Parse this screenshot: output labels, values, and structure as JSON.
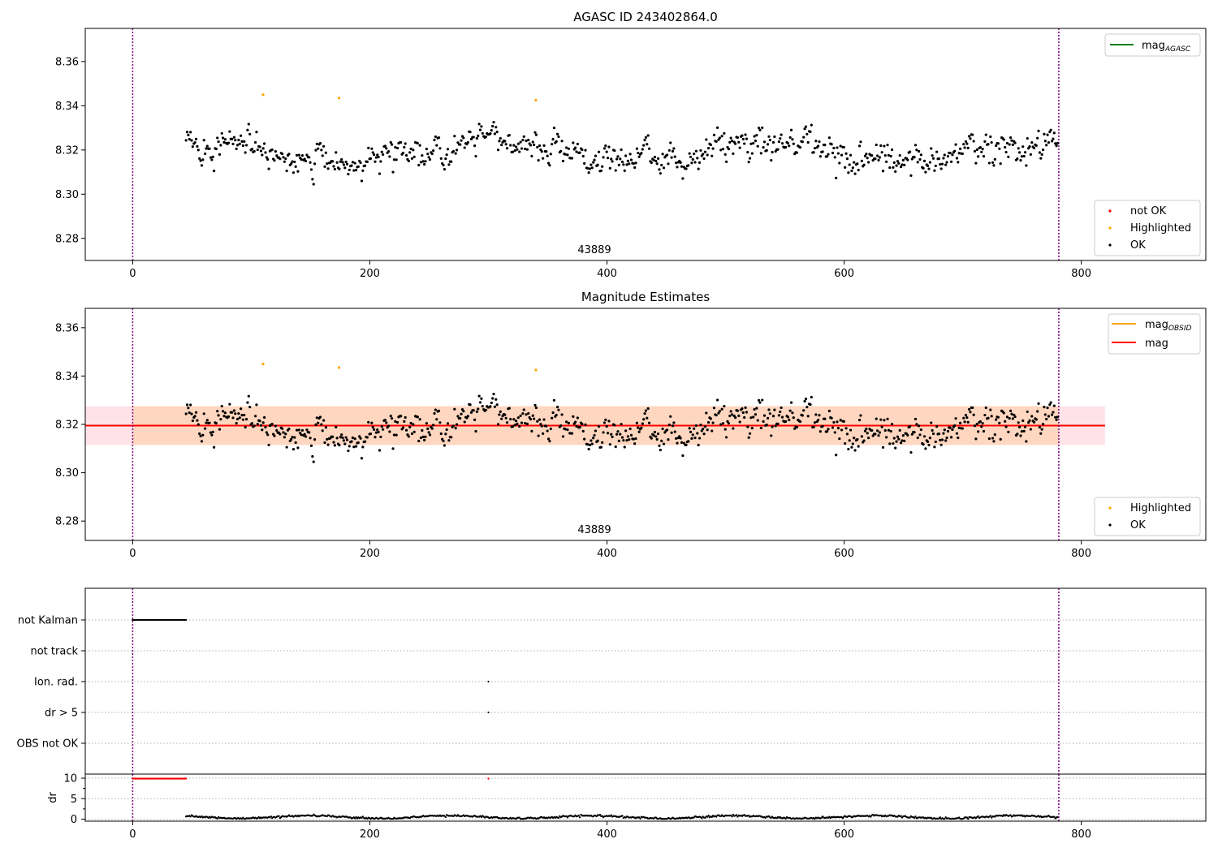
{
  "figure": {
    "colors": {
      "ok": "#000000",
      "not_ok": "#ff0000",
      "highlighted": "#ffa500",
      "mag_agasc": "#008000",
      "mag_obsid": "#ffa500",
      "mag": "#ff0000",
      "vline": "#800080",
      "band_outer": "#ffc0cb",
      "band_inner": "#ffd2b4"
    }
  },
  "chart_data": [
    {
      "type": "scatter",
      "title": "AGASC ID 243402864.0",
      "obsid_label": "43889",
      "xlim": [
        -40,
        905
      ],
      "ylim": [
        8.27,
        8.375
      ],
      "xticks": [
        "0",
        "200",
        "400",
        "600",
        "800"
      ],
      "yticks": [
        "8.28",
        "8.30",
        "8.32",
        "8.34",
        "8.36"
      ],
      "vlines": [
        0,
        781
      ],
      "legend_lines": [
        {
          "label": "mag",
          "sub": "AGASC"
        }
      ],
      "legend_points": [
        {
          "label": "not OK"
        },
        {
          "label": "Highlighted"
        },
        {
          "label": "OK"
        }
      ],
      "series": [
        {
          "name": "OK",
          "x_range": [
            45,
            780
          ],
          "count": 780,
          "mean": 8.319,
          "spread": 0.009
        },
        {
          "name": "Highlighted",
          "x": [
            110,
            174,
            340
          ],
          "y": [
            8.345,
            8.3435,
            8.3425
          ]
        }
      ]
    },
    {
      "type": "scatter",
      "title": "Magnitude Estimates",
      "obsid_label": "43889",
      "xlim": [
        -40,
        905
      ],
      "ylim": [
        8.272,
        8.368
      ],
      "xticks": [
        "0",
        "200",
        "400",
        "600",
        "800"
      ],
      "yticks": [
        "8.28",
        "8.30",
        "8.32",
        "8.34",
        "8.36"
      ],
      "vlines": [
        0,
        781
      ],
      "mag": 8.3195,
      "mag_obsid": 8.3195,
      "band": [
        8.3115,
        8.3275
      ],
      "band_x": [
        -40,
        820
      ],
      "legend_lines": [
        {
          "label": "mag",
          "sub": "OBSID"
        },
        {
          "label": "mag",
          "sub": ""
        }
      ],
      "legend_points": [
        {
          "label": "Highlighted"
        },
        {
          "label": "OK"
        }
      ],
      "series": [
        {
          "name": "OK",
          "x_range": [
            45,
            780
          ],
          "count": 780,
          "mean": 8.319,
          "spread": 0.009
        },
        {
          "name": "Highlighted",
          "x": [
            110,
            174,
            340
          ],
          "y": [
            8.345,
            8.3435,
            8.3425
          ]
        }
      ]
    },
    {
      "type": "scatter",
      "xlim": [
        -40,
        905
      ],
      "xticks": [
        "0",
        "200",
        "400",
        "600",
        "800"
      ],
      "vlines": [
        0,
        781
      ],
      "flag_labels": [
        "not Kalman",
        "not track",
        "Ion. rad.",
        "dr > 5",
        "OBS not OK"
      ],
      "flags": [
        {
          "label": "not Kalman",
          "x_range": [
            0,
            45
          ],
          "count": 46
        },
        {
          "label": "Ion. rad.",
          "x": [
            300
          ]
        },
        {
          "label": "dr > 5",
          "x": [
            300
          ]
        }
      ],
      "dr": {
        "ylabel": "dr",
        "yticks": [
          "0",
          "5",
          "10"
        ],
        "ylim": [
          -0.5,
          11
        ],
        "clipped": {
          "x_range": [
            0,
            45
          ],
          "extra_x": [
            300
          ],
          "value": 10
        },
        "series": {
          "x_range": [
            45,
            780
          ],
          "mean": 0.5,
          "spread": 0.3
        }
      }
    }
  ]
}
